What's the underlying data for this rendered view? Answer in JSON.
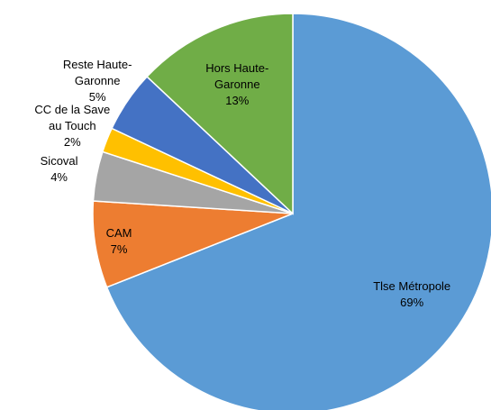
{
  "chart_data": {
    "type": "pie",
    "categories": [
      "Tlse Métropole",
      "CAM",
      "Sicoval",
      "CC de la Save au Touch",
      "Reste Haute-Garonne",
      "Hors Haute-Garonne"
    ],
    "values": [
      69,
      7,
      4,
      2,
      5,
      13
    ],
    "value_labels": [
      "69%",
      "7%",
      "4%",
      "2%",
      "5%",
      "13%"
    ],
    "colors": [
      "#5b9bd5",
      "#ed7d31",
      "#a5a5a5",
      "#ffc000",
      "#4472c4",
      "#70ad47"
    ]
  }
}
